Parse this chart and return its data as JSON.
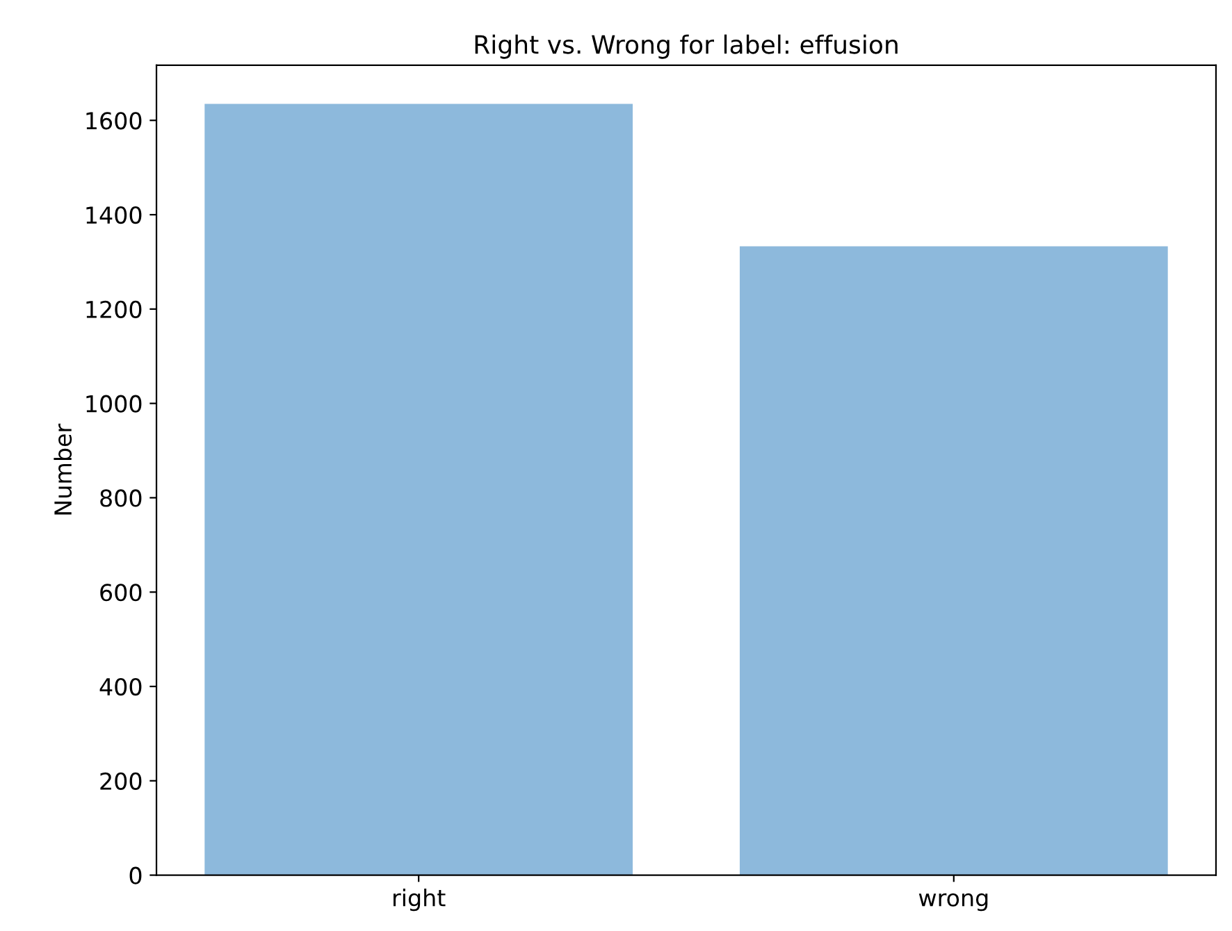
{
  "chart_data": {
    "type": "bar",
    "title": "Right vs. Wrong for label: effusion",
    "ylabel": "Number",
    "categories": [
      "right",
      "wrong"
    ],
    "values": [
      1635,
      1333
    ],
    "color": "#8db9dc",
    "ylim": [
      0,
      1717
    ],
    "yticks": [
      0,
      200,
      400,
      600,
      800,
      1000,
      1200,
      1400,
      1600
    ],
    "grid": false
  }
}
